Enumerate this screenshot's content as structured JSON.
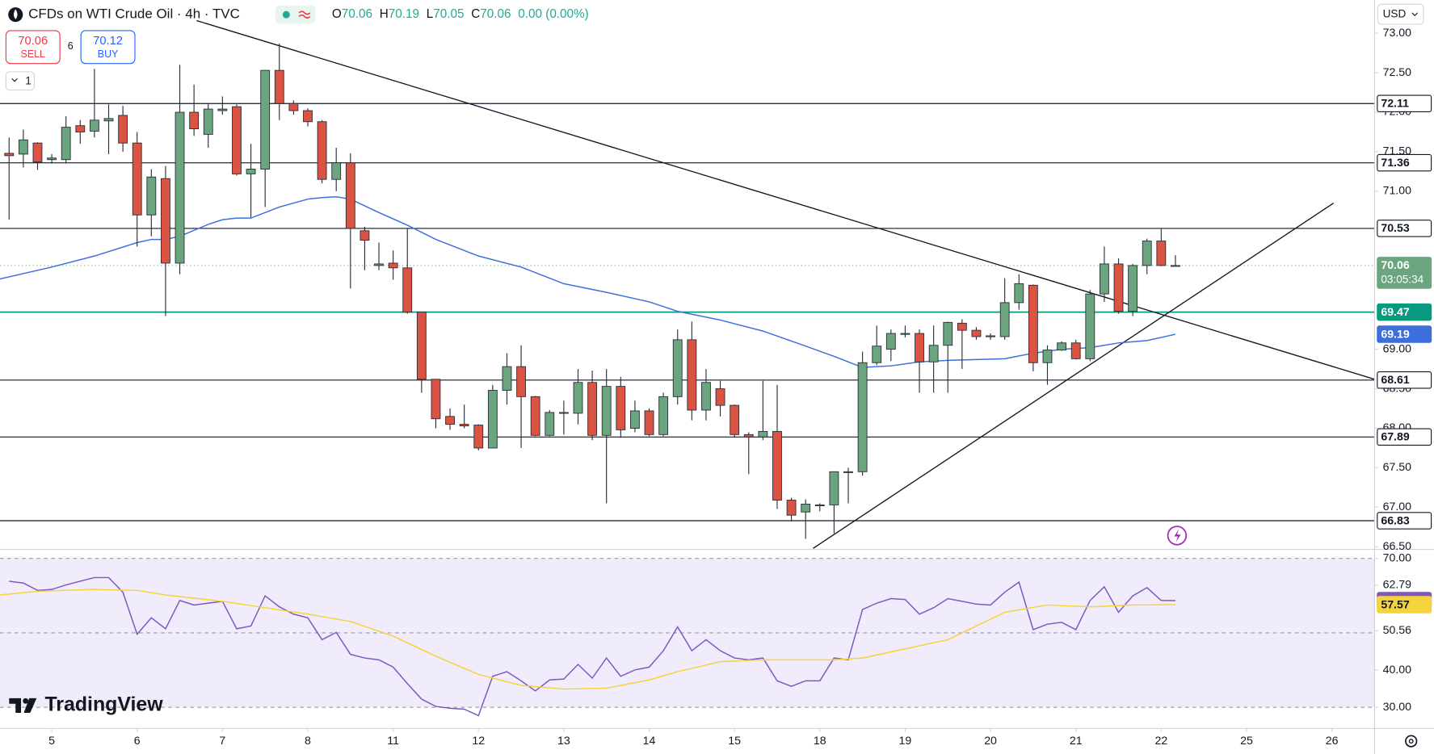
{
  "header": {
    "symbol": "CFDs on WTI Crude Oil · 4h · TVC",
    "ohlc": [
      {
        "label": "O",
        "value": 70.06
      },
      {
        "label": "H",
        "value": 70.19
      },
      {
        "label": "L",
        "value": 70.05
      },
      {
        "label": "C",
        "value": 70.06
      }
    ],
    "change": "0.00 (0.00%)",
    "sell": {
      "price": 70.06,
      "label": "SELL"
    },
    "buy": {
      "price": 70.12,
      "label": "BUY"
    },
    "spread": 6,
    "quantity": 1,
    "currency": "USD",
    "logo": "TradingView"
  },
  "chart_data": [
    {
      "type": "candlestick",
      "up_color": "#6aa57f",
      "down_color": "#db5443",
      "open": [
        71.48,
        71.47,
        71.61,
        71.4,
        71.4,
        71.83,
        71.76,
        71.89,
        71.96,
        71.61,
        70.7,
        71.16,
        70.09,
        72.0,
        71.72,
        72.02,
        72.07,
        71.22,
        71.28,
        72.53,
        72.11,
        72.02,
        71.88,
        71.15,
        71.36,
        70.5,
        70.06,
        70.09,
        70.03,
        69.47,
        68.62,
        68.15,
        68.05,
        68.04,
        67.75,
        68.48,
        68.78,
        68.4,
        67.91,
        68.19,
        68.19,
        68.58,
        67.91,
        68.53,
        68.0,
        68.22,
        67.92,
        68.4,
        69.12,
        68.23,
        68.5,
        68.29,
        67.92,
        67.89,
        67.96,
        67.09,
        66.94,
        67.02,
        67.03,
        67.44,
        67.45,
        68.83,
        69.0,
        69.19,
        69.2,
        68.84,
        69.05,
        69.33,
        69.24,
        69.16,
        69.16,
        69.59,
        69.81,
        68.83,
        68.99,
        69.08,
        68.88,
        69.7,
        70.08,
        69.48,
        70.06,
        70.37,
        70.06
      ],
      "high": [
        71.68,
        71.78,
        71.62,
        71.47,
        71.95,
        71.9,
        72.55,
        72.1,
        72.08,
        71.75,
        71.28,
        71.32,
        72.6,
        72.35,
        72.11,
        72.2,
        72.1,
        71.6,
        72.53,
        72.87,
        72.15,
        72.05,
        71.9,
        71.55,
        71.48,
        70.55,
        70.35,
        70.25,
        70.53,
        69.47,
        68.62,
        68.25,
        68.3,
        68.05,
        68.55,
        68.95,
        69.05,
        68.41,
        68.23,
        68.35,
        68.75,
        68.73,
        68.75,
        68.65,
        68.35,
        68.25,
        68.45,
        69.25,
        69.35,
        68.75,
        68.6,
        68.3,
        67.95,
        68.6,
        68.55,
        67.12,
        67.1,
        67.05,
        67.45,
        67.5,
        68.97,
        69.3,
        69.25,
        69.3,
        69.25,
        69.3,
        69.35,
        69.38,
        69.28,
        69.2,
        69.9,
        69.95,
        69.82,
        69.05,
        69.1,
        69.12,
        69.75,
        70.3,
        70.15,
        70.08,
        70.4,
        70.53,
        70.19
      ],
      "low": [
        70.64,
        71.3,
        71.27,
        71.35,
        71.35,
        71.6,
        71.68,
        71.47,
        71.5,
        70.3,
        70.43,
        69.42,
        69.95,
        71.7,
        71.55,
        71.97,
        71.2,
        70.67,
        70.8,
        71.9,
        71.97,
        71.82,
        71.1,
        71.0,
        69.77,
        70.0,
        70.0,
        69.88,
        69.45,
        68.45,
        68.0,
        67.98,
        68.0,
        67.72,
        67.75,
        68.3,
        67.75,
        67.9,
        67.9,
        67.92,
        68.05,
        67.85,
        67.05,
        67.88,
        67.95,
        67.9,
        67.9,
        68.3,
        68.1,
        68.1,
        68.15,
        67.88,
        67.42,
        67.85,
        66.98,
        66.82,
        66.6,
        66.95,
        66.67,
        67.05,
        67.4,
        68.8,
        68.85,
        69.15,
        68.45,
        68.45,
        68.45,
        68.75,
        69.12,
        69.12,
        69.12,
        69.5,
        68.72,
        68.55,
        68.98,
        68.87,
        68.85,
        69.6,
        69.45,
        69.42,
        69.95,
        70.05,
        70.05
      ],
      "close": [
        71.45,
        71.65,
        71.37,
        71.42,
        71.81,
        71.75,
        71.9,
        71.92,
        71.61,
        70.7,
        71.18,
        70.09,
        72.0,
        71.79,
        72.04,
        72.04,
        71.22,
        71.28,
        72.53,
        72.11,
        72.02,
        71.88,
        71.15,
        71.36,
        70.53,
        70.38,
        70.08,
        70.03,
        69.47,
        68.62,
        68.12,
        68.05,
        68.03,
        67.75,
        68.48,
        68.78,
        68.4,
        67.91,
        68.2,
        68.2,
        68.58,
        67.91,
        68.53,
        67.98,
        68.22,
        67.92,
        68.4,
        69.12,
        68.23,
        68.58,
        68.29,
        67.92,
        67.89,
        67.96,
        67.09,
        66.9,
        67.04,
        67.03,
        67.45,
        67.45,
        68.83,
        69.04,
        69.2,
        69.2,
        68.84,
        69.05,
        69.34,
        69.24,
        69.16,
        69.17,
        69.59,
        69.83,
        68.83,
        68.99,
        69.08,
        68.88,
        69.7,
        70.08,
        69.48,
        70.06,
        70.37,
        70.06,
        70.06
      ],
      "ma": {
        "color": "#3d6fdb",
        "x": [
          -0.64,
          3,
          6,
          9,
          10,
          11,
          12,
          14,
          15,
          16,
          17,
          18,
          19,
          20,
          21,
          22,
          23,
          24,
          26,
          28,
          30,
          33,
          36,
          39,
          42,
          45,
          47,
          50,
          53,
          56,
          58,
          60,
          62,
          64,
          66,
          70,
          72,
          74,
          76,
          78,
          80,
          82
        ],
        "values": [
          69.89,
          70.04,
          70.18,
          70.35,
          70.39,
          70.39,
          70.43,
          70.58,
          70.64,
          70.66,
          70.66,
          70.73,
          70.8,
          70.85,
          70.9,
          70.92,
          70.93,
          70.9,
          70.73,
          70.57,
          70.39,
          70.18,
          70.04,
          69.83,
          69.72,
          69.6,
          69.48,
          69.37,
          69.23,
          69.04,
          68.91,
          68.77,
          68.79,
          68.84,
          68.86,
          68.88,
          68.95,
          69.0,
          69.02,
          69.08,
          69.11,
          69.19
        ]
      },
      "levels": [
        {
          "value": 72.11,
          "color": "#131722"
        },
        {
          "value": 71.36,
          "color": "#131722"
        },
        {
          "value": 70.53,
          "color": "#131722"
        },
        {
          "value": 69.47,
          "color": "#089981"
        },
        {
          "value": 68.61,
          "color": "#131722"
        },
        {
          "value": 67.89,
          "color": "#131722"
        },
        {
          "value": 66.83,
          "color": "#131722"
        }
      ],
      "last": {
        "value": 70.06,
        "countdown": "03:05:34",
        "color": "#6aa57f"
      },
      "trendlines": [
        {
          "x": [
            13.18,
            96.0
          ],
          "y": [
            73.16,
            68.62
          ]
        },
        {
          "x": [
            56.53,
            93.12
          ],
          "y": [
            66.48,
            70.85
          ]
        }
      ],
      "xlim": [
        -0.64,
        96
      ],
      "ylim": [
        66.48,
        73.42
      ],
      "yticks": [
        {
          "value": 73,
          "label": "73.00"
        },
        {
          "value": 72.5,
          "label": "72.50"
        },
        {
          "value": 72,
          "label": "72.00"
        },
        {
          "value": 71.5,
          "label": "71.50"
        },
        {
          "value": 71,
          "label": "71.00"
        },
        {
          "value": 69,
          "label": "69.00"
        },
        {
          "value": 68.5,
          "label": "68.50"
        },
        {
          "value": 68,
          "label": "68.00"
        },
        {
          "value": 67.5,
          "label": "67.50"
        },
        {
          "value": 67,
          "label": "67.00"
        },
        {
          "value": 66.5,
          "label": "66.50"
        }
      ],
      "xticks": [
        {
          "value": 3,
          "label": "5"
        },
        {
          "value": 9,
          "label": "6"
        },
        {
          "value": 15,
          "label": "7"
        },
        {
          "value": 21,
          "label": "8"
        },
        {
          "value": 27,
          "label": "11"
        },
        {
          "value": 33,
          "label": "12"
        },
        {
          "value": 39,
          "label": "13"
        },
        {
          "value": 45,
          "label": "14"
        },
        {
          "value": 51,
          "label": "15"
        },
        {
          "value": 57,
          "label": "18"
        },
        {
          "value": 63,
          "label": "19"
        },
        {
          "value": 69,
          "label": "20"
        },
        {
          "value": 75,
          "label": "21"
        },
        {
          "value": 81,
          "label": "22"
        },
        {
          "value": 87,
          "label": "25"
        },
        {
          "value": 93,
          "label": "26"
        }
      ]
    },
    {
      "type": "line",
      "series": [
        {
          "color": "#7e57c2",
          "values": [
            63.87,
            63.37,
            61.41,
            61.66,
            62.88,
            63.87,
            64.85,
            64.85,
            60.92,
            49.63,
            54.05,
            51.1,
            58.71,
            57.48,
            57.98,
            58.47,
            51.1,
            51.84,
            59.94,
            56.99,
            55.03,
            54.05,
            48.16,
            50.12,
            44.23,
            43.25,
            42.76,
            40.8,
            36.38,
            32.21,
            30.25,
            29.75,
            29.51,
            27.79,
            38.34,
            39.57,
            37.12,
            34.42,
            37.36,
            37.61,
            41.53,
            37.85,
            43.25,
            38.34,
            40.06,
            40.8,
            45.21,
            51.6,
            45.21,
            48.16,
            45.21,
            43.25,
            42.76,
            43.25,
            37.12,
            35.64,
            37.12,
            37.12,
            43.25,
            42.76,
            56.26,
            57.98,
            59.2,
            58.96,
            55.03,
            56.75,
            59.2,
            58.47,
            57.73,
            57.48,
            60.92,
            63.62,
            50.86,
            52.33,
            52.82,
            50.86,
            58.71,
            62.39,
            55.52,
            59.94,
            62.15,
            58.71,
            58.67
          ],
          "badge_text": "#ffffff"
        },
        {
          "color": "#f5d33a",
          "x": [
            -0.64,
            2,
            5.8,
            9,
            11,
            15,
            18,
            21,
            24,
            27,
            30,
            33,
            36,
            39,
            42,
            45,
            47,
            50,
            53,
            58,
            60,
            63,
            66,
            70,
            73,
            76,
            79,
            82
          ],
          "values": [
            60.18,
            61.17,
            61.66,
            61.41,
            60.18,
            58.47,
            56.75,
            55.03,
            53.07,
            49.14,
            43.74,
            38.83,
            35.89,
            34.91,
            35.15,
            37.36,
            39.57,
            42.27,
            42.76,
            42.76,
            43.25,
            45.71,
            48.16,
            55.52,
            57.48,
            56.99,
            57.48,
            57.57
          ],
          "badge_text": "#131722"
        }
      ],
      "bands": [
        70,
        50,
        30
      ],
      "band_fill": "#f0ecfb",
      "xlim": [
        -0.64,
        96
      ],
      "ylim": [
        26.07,
        71.96
      ],
      "yticks": [
        {
          "value": 70,
          "label": "70.00"
        },
        {
          "value": 62.79,
          "label": "62.79"
        },
        {
          "value": 50.56,
          "label": "50.56"
        },
        {
          "value": 40,
          "label": "40.00"
        },
        {
          "value": 30,
          "label": "30.00"
        }
      ]
    }
  ]
}
